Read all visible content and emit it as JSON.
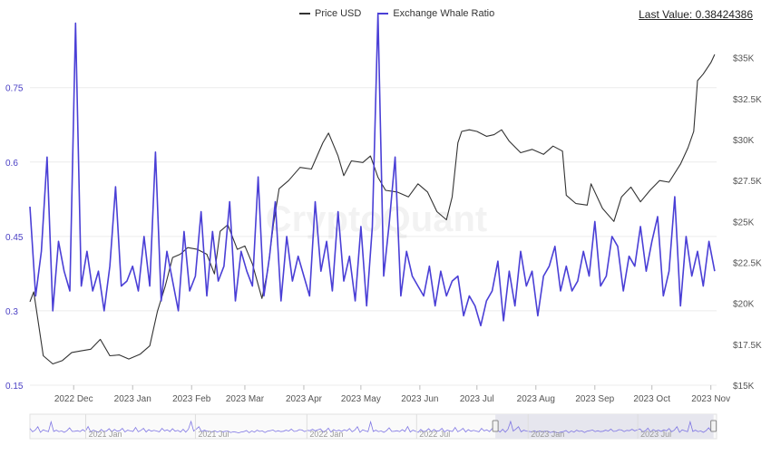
{
  "legend": {
    "items": [
      {
        "label": "Price USD",
        "color": "#333333"
      },
      {
        "label": "Exchange Whale Ratio",
        "color": "#4a3fd6"
      }
    ]
  },
  "last_value_text": "Last Value: 0.38424386",
  "watermark": "CryptoQuant",
  "chart_data": {
    "type": "line",
    "x_ticks": [
      "2022 Dec",
      "2023 Jan",
      "2023 Feb",
      "2023 Mar",
      "2023 Apr",
      "2023 May",
      "2023 Jun",
      "2023 Jul",
      "2023 Aug",
      "2023 Sep",
      "2023 Oct",
      "2023 Nov"
    ],
    "left_axis": {
      "ticks": [
        "0.75",
        "0.6",
        "0.45",
        "0.3",
        "0.15"
      ],
      "values": [
        0.75,
        0.6,
        0.45,
        0.3,
        0.15
      ],
      "range": [
        0.15,
        0.85
      ]
    },
    "right_axis": {
      "ticks": [
        "$35K",
        "$32.5K",
        "$30K",
        "$27.5K",
        "$25K",
        "$22.5K",
        "$20K",
        "$17.5K",
        "$15K"
      ],
      "values": [
        35000,
        32500,
        30000,
        27500,
        25000,
        22500,
        20000,
        17500,
        15000
      ],
      "range": [
        15000,
        36200
      ]
    },
    "grid": true,
    "legend_position": "top-center",
    "series": [
      {
        "name": "Price USD",
        "axis": "right",
        "color": "#333333",
        "x": [
          "2022-11-08",
          "2022-11-10",
          "2022-11-15",
          "2022-11-20",
          "2022-11-25",
          "2022-11-30",
          "2022-12-05",
          "2022-12-10",
          "2022-12-15",
          "2022-12-20",
          "2022-12-25",
          "2022-12-30",
          "2023-01-05",
          "2023-01-10",
          "2023-01-14",
          "2023-01-18",
          "2023-01-22",
          "2023-01-26",
          "2023-01-30",
          "2023-02-04",
          "2023-02-09",
          "2023-02-13",
          "2023-02-16",
          "2023-02-20",
          "2023-02-25",
          "2023-03-01",
          "2023-03-05",
          "2023-03-10",
          "2023-03-13",
          "2023-03-16",
          "2023-03-19",
          "2023-03-24",
          "2023-03-30",
          "2023-04-05",
          "2023-04-11",
          "2023-04-14",
          "2023-04-19",
          "2023-04-22",
          "2023-04-26",
          "2023-05-02",
          "2023-05-06",
          "2023-05-10",
          "2023-05-14",
          "2023-05-20",
          "2023-05-26",
          "2023-05-31",
          "2023-06-05",
          "2023-06-10",
          "2023-06-15",
          "2023-06-18",
          "2023-06-21",
          "2023-06-23",
          "2023-06-27",
          "2023-07-01",
          "2023-07-06",
          "2023-07-10",
          "2023-07-14",
          "2023-07-18",
          "2023-07-24",
          "2023-07-30",
          "2023-08-05",
          "2023-08-10",
          "2023-08-15",
          "2023-08-17",
          "2023-08-22",
          "2023-08-28",
          "2023-08-30",
          "2023-09-05",
          "2023-09-11",
          "2023-09-15",
          "2023-09-20",
          "2023-09-25",
          "2023-09-30",
          "2023-10-05",
          "2023-10-10",
          "2023-10-16",
          "2023-10-20",
          "2023-10-23",
          "2023-10-25",
          "2023-10-28",
          "2023-11-01",
          "2023-11-03"
        ],
        "values": [
          20100,
          20700,
          16800,
          16300,
          16500,
          17000,
          17100,
          17200,
          17800,
          16800,
          16850,
          16600,
          16900,
          17400,
          19500,
          21000,
          22800,
          23000,
          23400,
          23300,
          23000,
          21800,
          24400,
          24800,
          23300,
          23500,
          22400,
          20300,
          22000,
          24800,
          27000,
          27500,
          28300,
          28200,
          29800,
          30400,
          29000,
          27800,
          28700,
          28600,
          29000,
          27700,
          26900,
          26800,
          26500,
          27300,
          26800,
          25600,
          25100,
          26500,
          29800,
          30500,
          30600,
          30500,
          30200,
          30300,
          30600,
          29900,
          29200,
          29400,
          29100,
          29600,
          29300,
          26600,
          26100,
          26000,
          27300,
          25800,
          25000,
          26500,
          27100,
          26200,
          26900,
          27500,
          27400,
          28500,
          29500,
          30500,
          33600,
          34000,
          34700,
          35200
        ]
      },
      {
        "name": "Exchange Whale Ratio",
        "axis": "left",
        "color": "#4a3fd6",
        "x": [
          "2022-11-08",
          "2022-11-11",
          "2022-11-14",
          "2022-11-17",
          "2022-11-20",
          "2022-11-23",
          "2022-11-26",
          "2022-11-29",
          "2022-12-02",
          "2022-12-05",
          "2022-12-08",
          "2022-12-11",
          "2022-12-14",
          "2022-12-17",
          "2022-12-20",
          "2022-12-23",
          "2022-12-26",
          "2022-12-29",
          "2023-01-01",
          "2023-01-04",
          "2023-01-07",
          "2023-01-10",
          "2023-01-13",
          "2023-01-16",
          "2023-01-19",
          "2023-01-22",
          "2023-01-25",
          "2023-01-28",
          "2023-01-31",
          "2023-02-03",
          "2023-02-06",
          "2023-02-09",
          "2023-02-12",
          "2023-02-15",
          "2023-02-18",
          "2023-02-21",
          "2023-02-24",
          "2023-02-27",
          "2023-03-02",
          "2023-03-05",
          "2023-03-08",
          "2023-03-11",
          "2023-03-14",
          "2023-03-17",
          "2023-03-20",
          "2023-03-23",
          "2023-03-26",
          "2023-03-29",
          "2023-04-01",
          "2023-04-04",
          "2023-04-07",
          "2023-04-10",
          "2023-04-13",
          "2023-04-16",
          "2023-04-19",
          "2023-04-22",
          "2023-04-25",
          "2023-04-28",
          "2023-05-01",
          "2023-05-04",
          "2023-05-07",
          "2023-05-10",
          "2023-05-13",
          "2023-05-16",
          "2023-05-19",
          "2023-05-22",
          "2023-05-25",
          "2023-05-28",
          "2023-05-31",
          "2023-06-03",
          "2023-06-06",
          "2023-06-09",
          "2023-06-12",
          "2023-06-15",
          "2023-06-18",
          "2023-06-21",
          "2023-06-24",
          "2023-06-27",
          "2023-06-30",
          "2023-07-03",
          "2023-07-06",
          "2023-07-09",
          "2023-07-12",
          "2023-07-15",
          "2023-07-18",
          "2023-07-21",
          "2023-07-24",
          "2023-07-27",
          "2023-07-30",
          "2023-08-02",
          "2023-08-05",
          "2023-08-08",
          "2023-08-11",
          "2023-08-14",
          "2023-08-17",
          "2023-08-20",
          "2023-08-23",
          "2023-08-26",
          "2023-08-29",
          "2023-09-01",
          "2023-09-04",
          "2023-09-07",
          "2023-09-10",
          "2023-09-13",
          "2023-09-16",
          "2023-09-19",
          "2023-09-22",
          "2023-09-25",
          "2023-09-28",
          "2023-10-01",
          "2023-10-04",
          "2023-10-07",
          "2023-10-10",
          "2023-10-13",
          "2023-10-16",
          "2023-10-19",
          "2023-10-22",
          "2023-10-25",
          "2023-10-28",
          "2023-10-31",
          "2023-11-03"
        ],
        "values": [
          0.51,
          0.33,
          0.42,
          0.61,
          0.3,
          0.44,
          0.38,
          0.34,
          0.88,
          0.35,
          0.42,
          0.34,
          0.38,
          0.3,
          0.39,
          0.55,
          0.35,
          0.36,
          0.39,
          0.34,
          0.45,
          0.35,
          0.62,
          0.32,
          0.42,
          0.36,
          0.3,
          0.46,
          0.34,
          0.37,
          0.5,
          0.33,
          0.46,
          0.36,
          0.39,
          0.52,
          0.32,
          0.42,
          0.38,
          0.35,
          0.57,
          0.33,
          0.41,
          0.52,
          0.32,
          0.45,
          0.36,
          0.41,
          0.37,
          0.33,
          0.52,
          0.38,
          0.44,
          0.34,
          0.5,
          0.36,
          0.41,
          0.32,
          0.47,
          0.31,
          0.47,
          0.9,
          0.37,
          0.48,
          0.61,
          0.33,
          0.42,
          0.37,
          0.35,
          0.33,
          0.39,
          0.31,
          0.38,
          0.33,
          0.36,
          0.37,
          0.29,
          0.33,
          0.31,
          0.27,
          0.32,
          0.34,
          0.4,
          0.28,
          0.38,
          0.31,
          0.42,
          0.35,
          0.38,
          0.29,
          0.37,
          0.39,
          0.43,
          0.34,
          0.39,
          0.34,
          0.36,
          0.42,
          0.37,
          0.48,
          0.35,
          0.37,
          0.45,
          0.43,
          0.34,
          0.41,
          0.39,
          0.47,
          0.38,
          0.44,
          0.49,
          0.33,
          0.38,
          0.53,
          0.31,
          0.45,
          0.37,
          0.42,
          0.35,
          0.44,
          0.38
        ]
      }
    ]
  },
  "navigator": {
    "ticks": [
      "2021 Jan",
      "2021 Jul",
      "2022 Jan",
      "2022 Jul",
      "2023 Jan",
      "2023 Jul"
    ],
    "tick_dates": [
      "2021-01-01",
      "2021-07-01",
      "2022-01-01",
      "2022-07-01",
      "2023-01-01",
      "2023-07-01"
    ],
    "range": [
      "2020-10-01",
      "2023-11-08"
    ],
    "window": [
      "2022-11-08",
      "2023-11-03"
    ]
  }
}
